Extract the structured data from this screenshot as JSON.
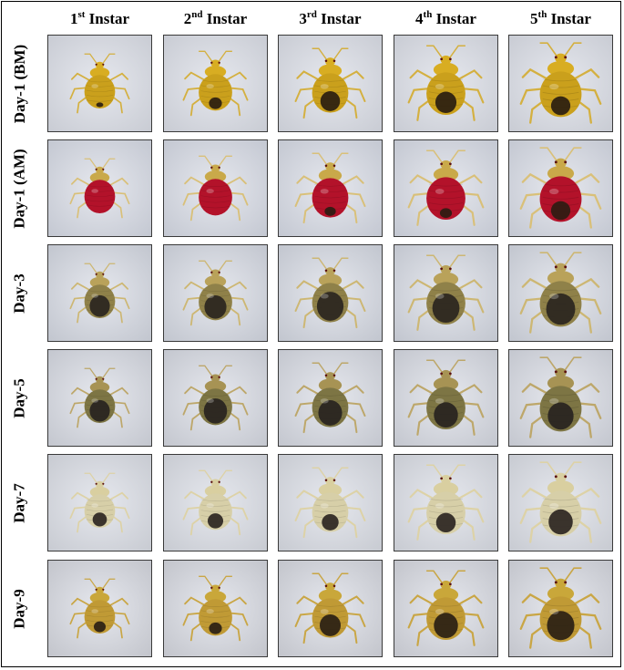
{
  "columns": [
    {
      "num": "1",
      "sup": "st",
      "rest": " Instar"
    },
    {
      "num": "2",
      "sup": "nd",
      "rest": " Instar"
    },
    {
      "num": "3",
      "sup": "rd",
      "rest": " Instar"
    },
    {
      "num": "4",
      "sup": "th",
      "rest": " Instar"
    },
    {
      "num": "5",
      "sup": "th",
      "rest": " Instar"
    }
  ],
  "rows": [
    {
      "label": "Day-1 (BM)",
      "bug": {
        "body": "#d8ad22",
        "abdomen": "#caa01c",
        "spot": "#2a1d10",
        "spotSize": [
          0.15,
          0.35,
          0.55,
          0.55,
          0.45
        ],
        "legs": "#d4b040"
      },
      "bg": "#c9ccd4"
    },
    {
      "label": "Day-1 (AM)",
      "bug": {
        "body": "#c9a94a",
        "abdomen": "#b3122a",
        "spot": "#2e1c12",
        "spotSize": [
          0,
          0,
          0.25,
          0.25,
          0.45
        ],
        "legs": "#d9c079"
      },
      "bg": "#c4c8d2"
    },
    {
      "label": "Day-3",
      "bug": {
        "body": "#b9a25a",
        "abdomen": "#8f8149",
        "spot": "#2a2520",
        "spotSize": [
          0.7,
          0.7,
          0.8,
          0.75,
          0.75
        ],
        "legs": "#cdb773"
      },
      "bg": "#c2c6cf"
    },
    {
      "label": "Day-5",
      "bug": {
        "body": "#a79354",
        "abdomen": "#7d7544",
        "spot": "#27231f",
        "spotSize": [
          0.7,
          0.75,
          0.7,
          0.65,
          0.65
        ],
        "legs": "#bda76a"
      },
      "bg": "#c4c7cf"
    },
    {
      "label": "Day-7",
      "bug": {
        "body": "#d9cfa0",
        "abdomen": "#d7cfa8",
        "spot": "#2c2622",
        "spotSize": [
          0.45,
          0.45,
          0.45,
          0.5,
          0.6
        ],
        "legs": "#ddd2a6"
      },
      "bg": "#c8cbd2"
    },
    {
      "label": "Day-9",
      "bug": {
        "body": "#c9a73a",
        "abdomen": "#c09a35",
        "spot": "#2a1f14",
        "spotSize": [
          0.35,
          0.35,
          0.6,
          0.65,
          0.7
        ],
        "legs": "#c9a645"
      },
      "bg": "#c3c5cc"
    }
  ]
}
